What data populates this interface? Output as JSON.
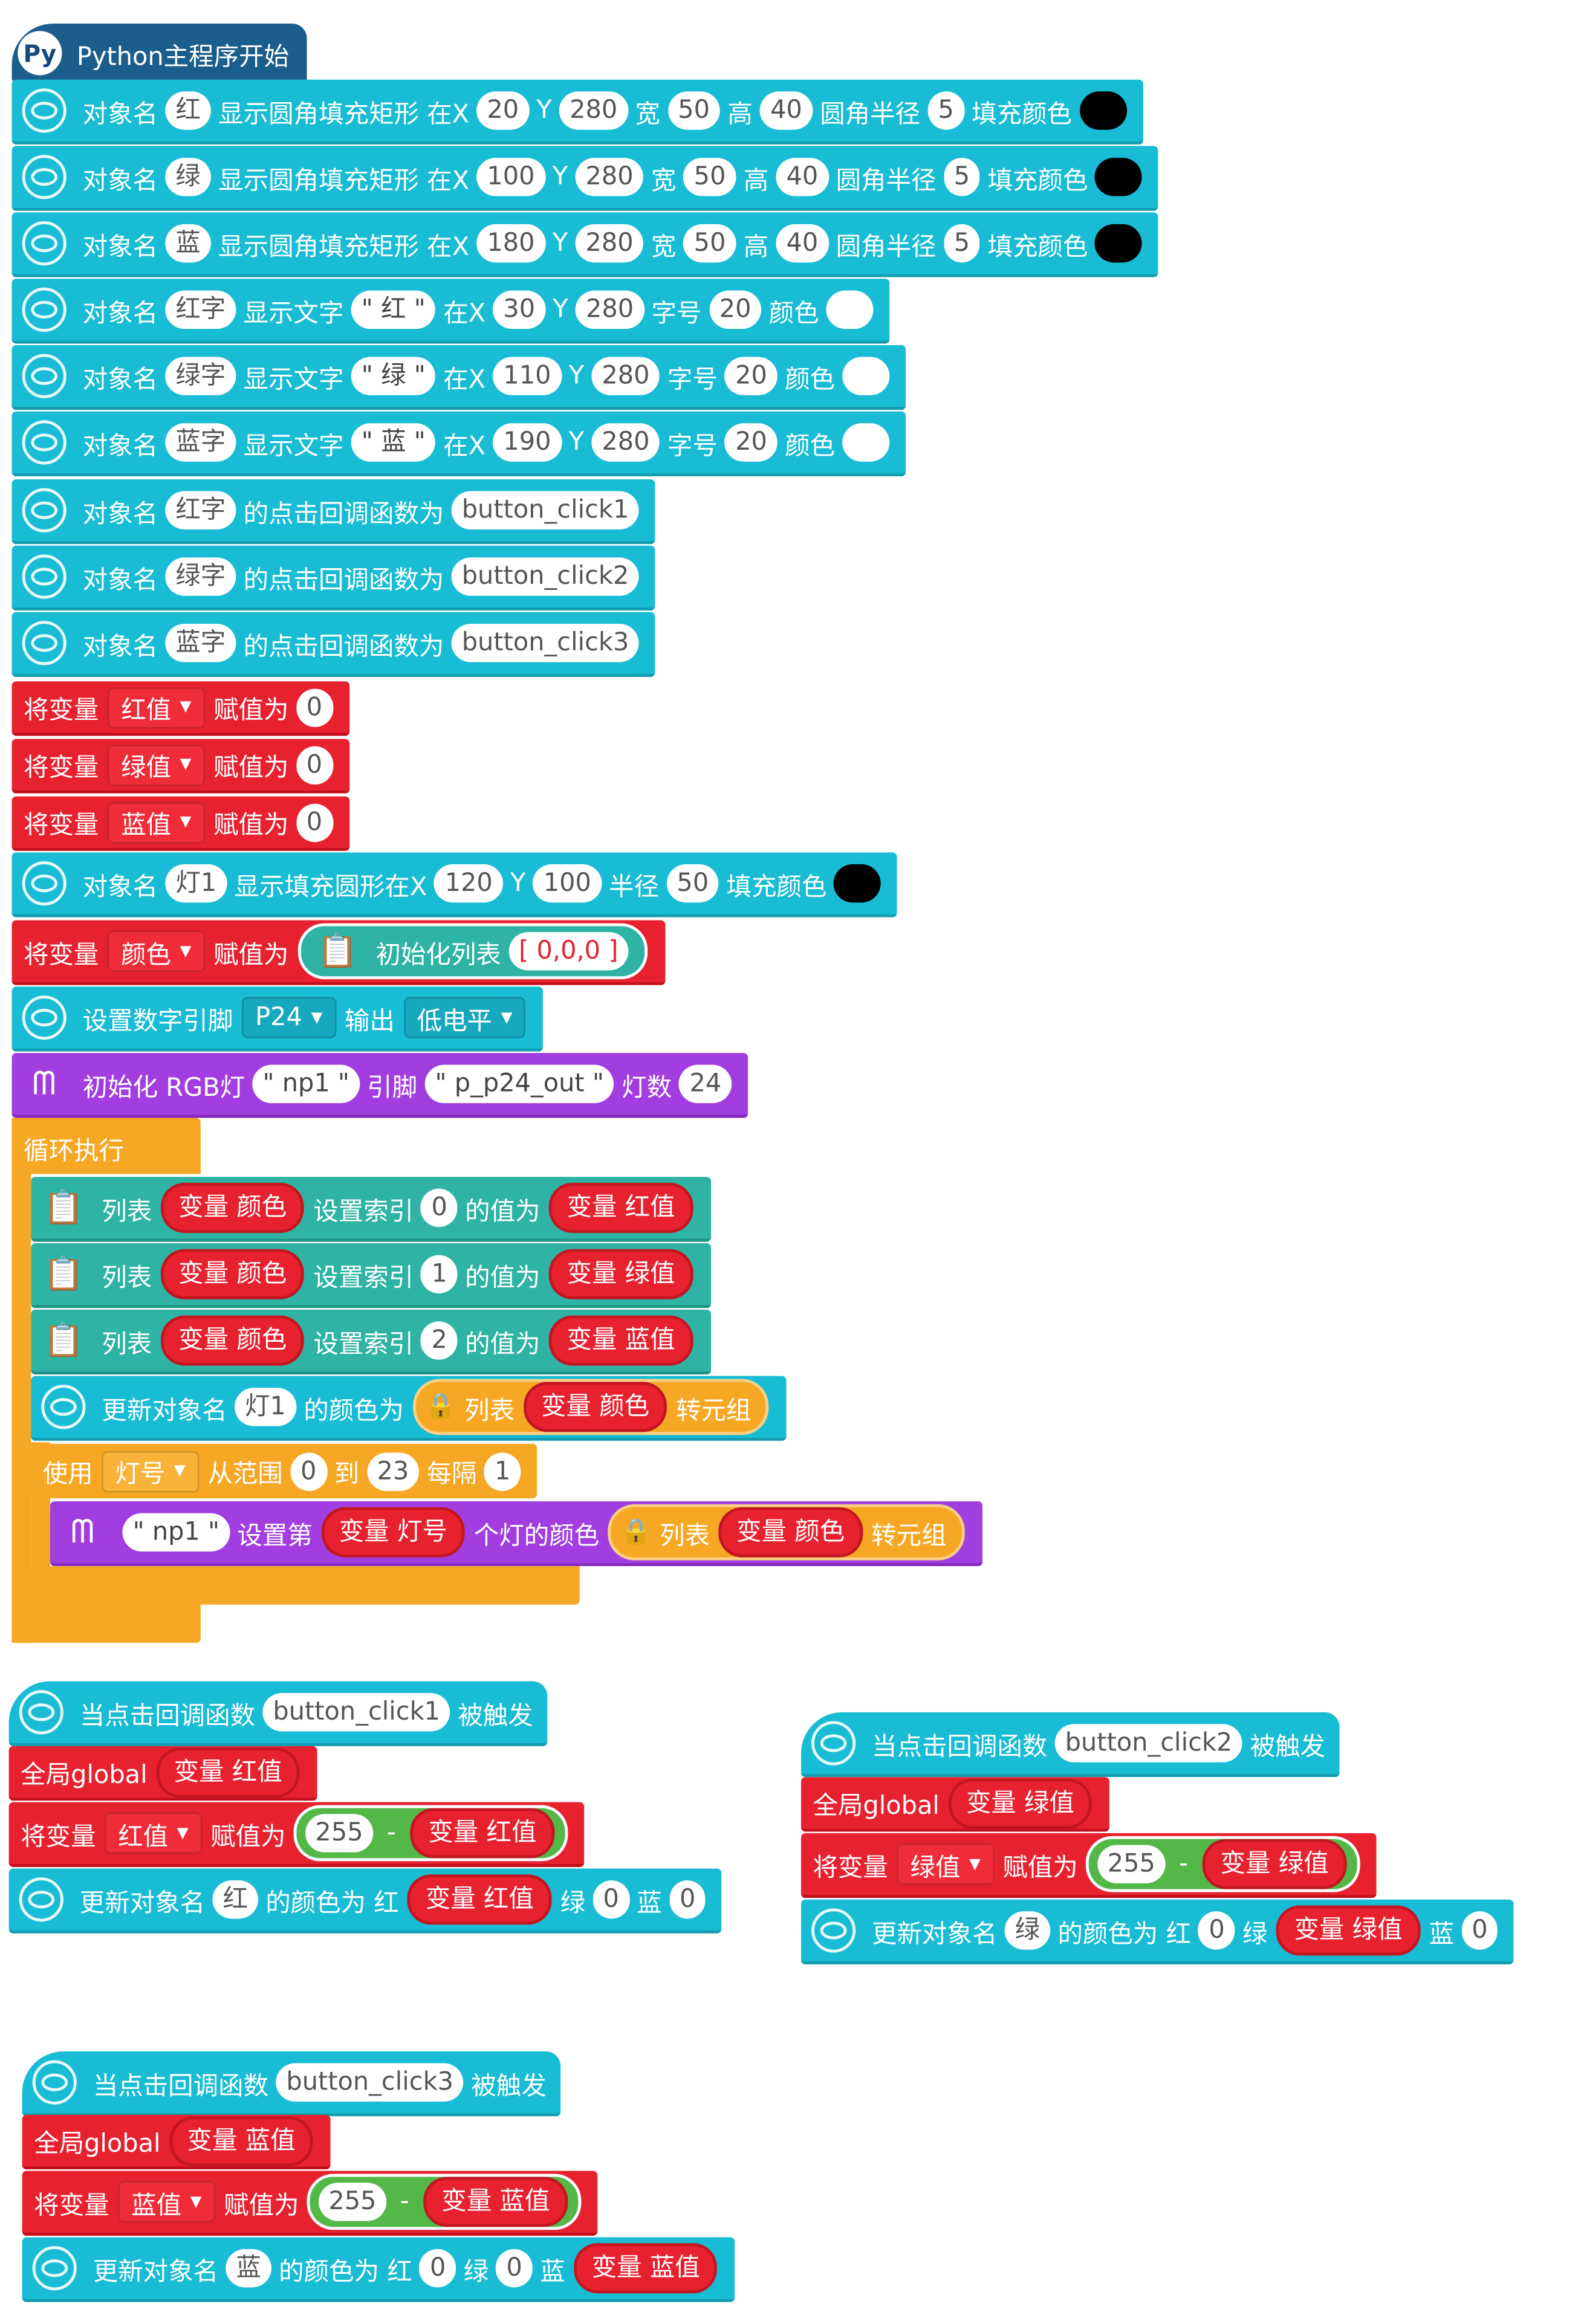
{
  "main": {
    "title": "Python主程序开始",
    "draw_rects": [
      {
        "label": "对象名",
        "name": "红",
        "action": "显示圆角填充矩形 在X",
        "x": "20",
        "y_label": "Y",
        "y": "280",
        "w_label": "宽",
        "w": "50",
        "h_label": "高",
        "h": "40",
        "r_label": "圆角半径",
        "r": "5",
        "color_label": "填充颜色",
        "color": "#000000"
      },
      {
        "label": "对象名",
        "name": "绿",
        "action": "显示圆角填充矩形 在X",
        "x": "100",
        "y_label": "Y",
        "y": "280",
        "w_label": "宽",
        "w": "50",
        "h_label": "高",
        "h": "40",
        "r_label": "圆角半径",
        "r": "5",
        "color_label": "填充颜色",
        "color": "#000000"
      },
      {
        "label": "对象名",
        "name": "蓝",
        "action": "显示圆角填充矩形 在X",
        "x": "180",
        "y_label": "Y",
        "y": "280",
        "w_label": "宽",
        "w": "50",
        "h_label": "高",
        "h": "40",
        "r_label": "圆角半径",
        "r": "5",
        "color_label": "填充颜色",
        "color": "#000000"
      }
    ],
    "draw_texts": [
      {
        "label": "对象名",
        "name": "红字",
        "action": "显示文字",
        "text": "\" 红 \"",
        "x_label": "在X",
        "x": "30",
        "y_label": "Y",
        "y": "280",
        "size_label": "字号",
        "size": "20",
        "color_label": "颜色",
        "color": "#ffffff"
      },
      {
        "label": "对象名",
        "name": "绿字",
        "action": "显示文字",
        "text": "\" 绿 \"",
        "x_label": "在X",
        "x": "110",
        "y_label": "Y",
        "y": "280",
        "size_label": "字号",
        "size": "20",
        "color_label": "颜色",
        "color": "#ffffff"
      },
      {
        "label": "对象名",
        "name": "蓝字",
        "action": "显示文字",
        "text": "\" 蓝 \"",
        "x_label": "在X",
        "x": "190",
        "y_label": "Y",
        "y": "280",
        "size_label": "字号",
        "size": "20",
        "color_label": "颜色",
        "color": "#ffffff"
      }
    ],
    "callbacks": [
      {
        "label": "对象名",
        "name": "红字",
        "action": "的点击回调函数为",
        "fn": "button_click1"
      },
      {
        "label": "对象名",
        "name": "绿字",
        "action": "的点击回调函数为",
        "fn": "button_click2"
      },
      {
        "label": "对象名",
        "name": "蓝字",
        "action": "的点击回调函数为",
        "fn": "button_click3"
      }
    ],
    "assigns": [
      {
        "label": "将变量",
        "var": "红值",
        "action": "赋值为",
        "value": "0"
      },
      {
        "label": "将变量",
        "var": "绿值",
        "action": "赋值为",
        "value": "0"
      },
      {
        "label": "将变量",
        "var": "蓝值",
        "action": "赋值为",
        "value": "0"
      }
    ],
    "circle": {
      "label": "对象名",
      "name": "灯1",
      "action": "显示填充圆形在X",
      "x": "120",
      "y_label": "Y",
      "y": "100",
      "r_label": "半径",
      "r": "50",
      "color_label": "填充颜色",
      "color": "#000000"
    },
    "color_assign": {
      "label": "将变量",
      "var": "颜色",
      "action": "赋值为",
      "init_label": "初始化列表",
      "init_value": "[ 0,0,0 ]"
    },
    "pin": {
      "label": "设置数字引脚",
      "pin": "P24",
      "action": "输出",
      "level": "低电平"
    },
    "rgb_init": {
      "label": "初始化 RGB灯",
      "name": "\" np1 \"",
      "pin_label": "引脚",
      "pin": "\" p_p24_out \"",
      "count_label": "灯数",
      "count": "24"
    },
    "loop": {
      "label": "循环执行",
      "list_sets": [
        {
          "label": "列表",
          "list": "变量 颜色",
          "action": "设置索引",
          "index": "0",
          "value_label": "的值为",
          "value": "变量 红值"
        },
        {
          "label": "列表",
          "list": "变量 颜色",
          "action": "设置索引",
          "index": "1",
          "value_label": "的值为",
          "value": "变量 绿值"
        },
        {
          "label": "列表",
          "list": "变量 颜色",
          "action": "设置索引",
          "index": "2",
          "value_label": "的值为",
          "value": "变量 蓝值"
        }
      ],
      "update": {
        "label": "更新对象名",
        "name": "灯1",
        "action": "的颜色为",
        "list_label": "列表",
        "list": "变量 颜色",
        "to_tuple": "转元组"
      },
      "for": {
        "label": "使用",
        "var": "灯号",
        "range_label": "从范围",
        "from": "0",
        "to_label": "到",
        "to": "23",
        "step_label": "每隔",
        "step": "1"
      },
      "set_pixel": {
        "name": "\" np1 \"",
        "label": "设置第",
        "index": "变量 灯号",
        "action": "个灯的颜色",
        "list_label": "列表",
        "list": "变量 颜色",
        "to_tuple": "转元组"
      }
    }
  },
  "handlers": [
    {
      "label": "当点击回调函数",
      "fn": "button_click1",
      "trigger": "被触发",
      "global_label": "全局global",
      "global_var": "变量 红值",
      "assign_label": "将变量",
      "assign_var": "红值",
      "assign_action": "赋值为",
      "minuend": "255",
      "op": "-",
      "subtrahend": "变量 红值",
      "update_label": "更新对象名",
      "update_name": "红",
      "update_action": "的颜色为 红",
      "r": "变量 红值",
      "g_label": "绿",
      "g": "0",
      "b_label": "蓝",
      "b": "0"
    },
    {
      "label": "当点击回调函数",
      "fn": "button_click2",
      "trigger": "被触发",
      "global_label": "全局global",
      "global_var": "变量 绿值",
      "assign_label": "将变量",
      "assign_var": "绿值",
      "assign_action": "赋值为",
      "minuend": "255",
      "op": "-",
      "subtrahend": "变量 绿值",
      "update_label": "更新对象名",
      "update_name": "绿",
      "update_action": "的颜色为 红",
      "r": "0",
      "g_label": "绿",
      "g": "变量 绿值",
      "b_label": "蓝",
      "b": "0"
    },
    {
      "label": "当点击回调函数",
      "fn": "button_click3",
      "trigger": "被触发",
      "global_label": "全局global",
      "global_var": "变量 蓝值",
      "assign_label": "将变量",
      "assign_var": "蓝值",
      "assign_action": "赋值为",
      "minuend": "255",
      "op": "-",
      "subtrahend": "变量 蓝值",
      "update_label": "更新对象名",
      "update_name": "蓝",
      "update_action": "的颜色为 红",
      "r": "0",
      "g_label": "绿",
      "g": "0",
      "b_label": "蓝",
      "b": "变量 蓝值"
    }
  ],
  "icons": {
    "python": "python-logo-icon",
    "display": "display-object-icon",
    "list": "list-clipboard-icon",
    "rgb": "rgb-led-icon",
    "lock": "tuple-lock-icon"
  },
  "colors": {
    "display_block": "#18bcd4",
    "variable_block": "#e8212f",
    "rgb_block": "#a23ee0",
    "list_block": "#2eb3a5",
    "loop_block": "#f6a825",
    "math_block": "#53b848",
    "main_hat": "#1b5e8c"
  }
}
